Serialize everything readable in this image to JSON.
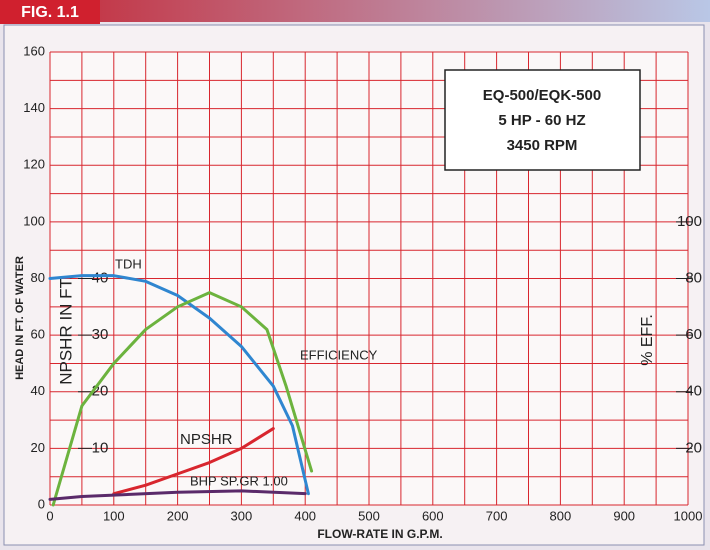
{
  "chart_data": {
    "type": "line",
    "figure_label": "FIG. 1.1",
    "box_lines": [
      "EQ-500/EQK-500",
      "5 HP - 60 HZ",
      "3450 RPM"
    ],
    "x_label": "FLOW-RATE IN G.P.M.",
    "y_label": "HEAD IN FT. OF WATER",
    "y2_label": "% EFF.",
    "y3_label": "NPSHR IN FT.",
    "xlim": [
      0,
      1000
    ],
    "xticks": [
      0,
      100,
      200,
      300,
      400,
      500,
      600,
      700,
      800,
      900,
      1000
    ],
    "xgrid": [
      50,
      150,
      250,
      350,
      450,
      550,
      650,
      750,
      850,
      950
    ],
    "ylim": [
      0,
      160
    ],
    "yticks": [
      0,
      20,
      40,
      60,
      80,
      100,
      120,
      140,
      160
    ],
    "ygrid": [
      10,
      30,
      50,
      70,
      90,
      110,
      130,
      150
    ],
    "y2lim": [
      0,
      160
    ],
    "y2ticks": [
      20,
      40,
      60,
      80,
      100
    ],
    "y3lim": [
      0,
      80
    ],
    "y3ticks": [
      10,
      20,
      30,
      40
    ],
    "grid": true,
    "grid_color": "#d8262e",
    "series": [
      {
        "name": "TDH",
        "color": "#2f86d0",
        "axis": "y",
        "x": [
          0,
          50,
          100,
          150,
          200,
          250,
          300,
          350,
          380,
          405
        ],
        "values": [
          80,
          81,
          81,
          79,
          74,
          66,
          56,
          42,
          28,
          4
        ]
      },
      {
        "name": "EFFICIENCY",
        "color": "#6cb33e",
        "axis": "y2",
        "x": [
          5,
          50,
          100,
          150,
          200,
          250,
          300,
          340,
          370,
          410
        ],
        "values": [
          0,
          35,
          50,
          62,
          70,
          75,
          70,
          62,
          42,
          12
        ]
      },
      {
        "name": "NPSHR",
        "color": "#d8262e",
        "axis": "y3",
        "x": [
          100,
          150,
          200,
          250,
          300,
          350
        ],
        "values": [
          2,
          3.5,
          5.5,
          7.5,
          10,
          13.5
        ]
      },
      {
        "name": "BHP SP.GR 1.00",
        "color": "#5a2a6a",
        "axis": "y",
        "x": [
          0,
          50,
          100,
          200,
          300,
          400
        ],
        "values": [
          2,
          3,
          3.5,
          4.5,
          5,
          4
        ]
      }
    ]
  }
}
